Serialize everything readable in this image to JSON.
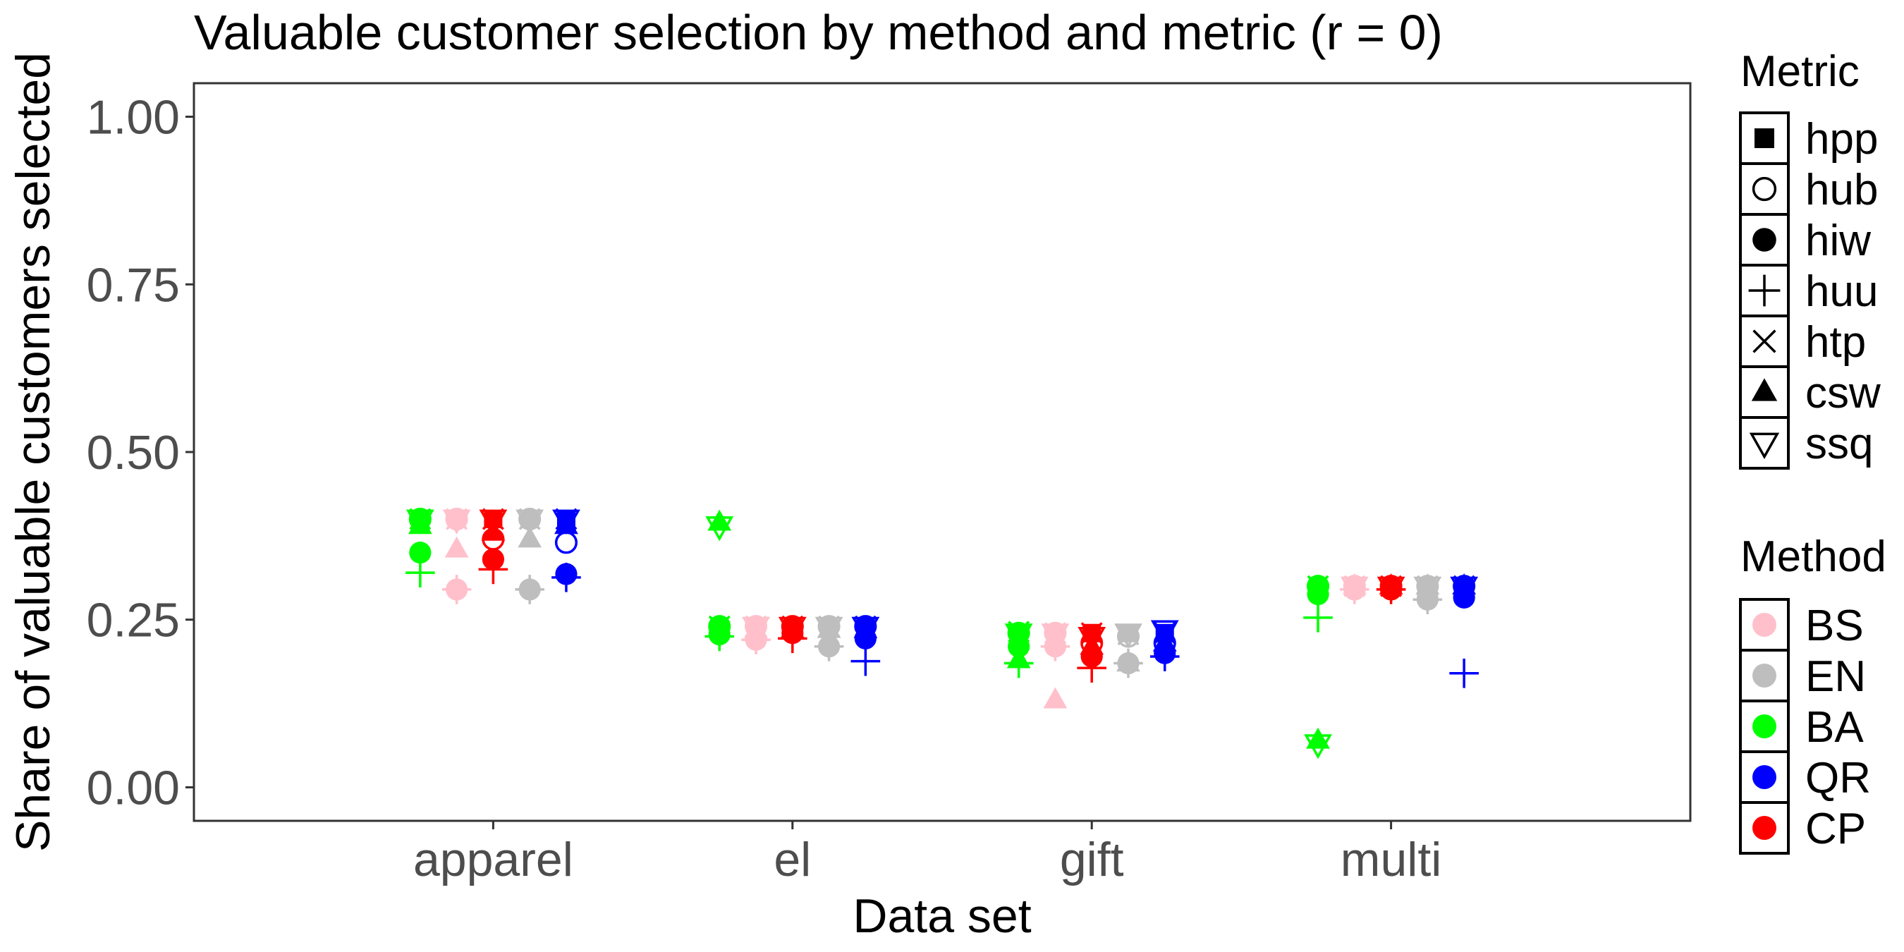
{
  "chart_data": {
    "type": "scatter",
    "title": "Valuable customer selection by method and metric (r = 0)",
    "xlabel": "Data set",
    "ylabel": "Share of valuable customers selected",
    "categories": [
      "apparel",
      "el",
      "gift",
      "multi"
    ],
    "ylim": [
      -0.05,
      1.05
    ],
    "yticks": [
      0,
      0.25,
      0.5,
      0.75,
      1.0
    ],
    "ytick_labels": [
      "0.00",
      "0.25",
      "0.50",
      "0.75",
      "1.00"
    ],
    "grid": false,
    "legend_position": "right",
    "legends": {
      "metric": {
        "title": "Metric",
        "items": [
          {
            "label": "hpp",
            "shape": "square-filled"
          },
          {
            "label": "hub",
            "shape": "circle-open"
          },
          {
            "label": "hiw",
            "shape": "circle-filled"
          },
          {
            "label": "huu",
            "shape": "plus"
          },
          {
            "label": "htp",
            "shape": "cross"
          },
          {
            "label": "csw",
            "shape": "triangle-up-filled"
          },
          {
            "label": "ssq",
            "shape": "triangle-down-open"
          }
        ]
      },
      "method": {
        "title": "Method",
        "items": [
          {
            "label": "BS",
            "color": "#FFC0CB"
          },
          {
            "label": "EN",
            "color": "#BEBEBE"
          },
          {
            "label": "BA",
            "color": "#00FF00"
          },
          {
            "label": "QR",
            "color": "#0000FF"
          },
          {
            "label": "CP",
            "color": "#FF0000"
          }
        ]
      }
    },
    "series": [
      {
        "category": "apparel",
        "method": "BA",
        "values": {
          "hpp": 0.4,
          "hub": 0.4,
          "hiw": 0.35,
          "huu": 0.32,
          "htp": 0.4,
          "csw": 0.39,
          "ssq": 0.4
        }
      },
      {
        "category": "apparel",
        "method": "BS",
        "values": {
          "hpp": 0.4,
          "hub": 0.4,
          "hiw": 0.295,
          "huu": 0.295,
          "htp": 0.4,
          "csw": 0.355,
          "ssq": 0.4
        }
      },
      {
        "category": "apparel",
        "method": "CP",
        "values": {
          "hpp": 0.4,
          "hub": 0.37,
          "hiw": 0.34,
          "huu": 0.325,
          "htp": 0.4,
          "csw": 0.38,
          "ssq": 0.4
        }
      },
      {
        "category": "apparel",
        "method": "EN",
        "values": {
          "hpp": 0.4,
          "hub": 0.4,
          "hiw": 0.295,
          "huu": 0.295,
          "htp": 0.4,
          "csw": 0.37,
          "ssq": 0.4
        }
      },
      {
        "category": "apparel",
        "method": "QR",
        "values": {
          "hpp": 0.4,
          "hub": 0.365,
          "hiw": 0.318,
          "huu": 0.313,
          "htp": 0.4,
          "csw": 0.39,
          "ssq": 0.4
        }
      },
      {
        "category": "el",
        "method": "BA",
        "values": {
          "hpp": 0.24,
          "hub": 0.24,
          "hiw": 0.228,
          "huu": 0.225,
          "htp": 0.24,
          "csw": 0.395,
          "ssq": 0.39
        }
      },
      {
        "category": "el",
        "method": "BS",
        "values": {
          "hpp": 0.24,
          "hub": 0.24,
          "hiw": 0.22,
          "huu": 0.22,
          "htp": 0.24,
          "csw": 0.235,
          "ssq": 0.24
        }
      },
      {
        "category": "el",
        "method": "CP",
        "values": {
          "hpp": 0.24,
          "hub": 0.24,
          "hiw": 0.23,
          "huu": 0.222,
          "htp": 0.24,
          "csw": 0.235,
          "ssq": 0.24
        }
      },
      {
        "category": "el",
        "method": "EN",
        "values": {
          "hpp": 0.24,
          "hub": 0.24,
          "hiw": 0.21,
          "huu": 0.21,
          "htp": 0.24,
          "csw": 0.235,
          "ssq": 0.24
        }
      },
      {
        "category": "el",
        "method": "QR",
        "values": {
          "hpp": 0.24,
          "hub": 0.24,
          "hiw": 0.222,
          "huu": 0.188,
          "htp": 0.24,
          "csw": 0.235,
          "ssq": 0.24
        }
      },
      {
        "category": "gift",
        "method": "BA",
        "values": {
          "hpp": 0.23,
          "hub": 0.23,
          "hiw": 0.21,
          "huu": 0.185,
          "htp": 0.232,
          "csw": 0.19,
          "ssq": 0.23
        }
      },
      {
        "category": "gift",
        "method": "BS",
        "values": {
          "hpp": 0.23,
          "hub": 0.23,
          "hiw": 0.21,
          "huu": 0.21,
          "htp": 0.23,
          "csw": 0.13,
          "ssq": 0.23
        }
      },
      {
        "category": "gift",
        "method": "CP",
        "values": {
          "hpp": 0.23,
          "hub": 0.215,
          "hiw": 0.195,
          "huu": 0.178,
          "htp": 0.23,
          "csw": 0.21,
          "ssq": 0.225
        }
      },
      {
        "category": "gift",
        "method": "EN",
        "values": {
          "hpp": 0.23,
          "hub": 0.225,
          "hiw": 0.185,
          "huu": 0.185,
          "htp": 0.228,
          "csw": 0.185,
          "ssq": 0.23
        }
      },
      {
        "category": "gift",
        "method": "QR",
        "values": {
          "hpp": 0.23,
          "hub": 0.215,
          "hiw": 0.2,
          "huu": 0.195,
          "htp": 0.23,
          "csw": 0.215,
          "ssq": 0.235
        }
      },
      {
        "category": "multi",
        "method": "BA",
        "values": {
          "hpp": 0.3,
          "hub": 0.3,
          "hiw": 0.288,
          "huu": 0.253,
          "htp": 0.3,
          "csw": 0.07,
          "ssq": 0.065
        }
      },
      {
        "category": "multi",
        "method": "BS",
        "values": {
          "hpp": 0.3,
          "hub": 0.3,
          "hiw": 0.295,
          "huu": 0.295,
          "htp": 0.3,
          "csw": 0.3,
          "ssq": 0.3
        }
      },
      {
        "category": "multi",
        "method": "CP",
        "values": {
          "hpp": 0.3,
          "hub": 0.3,
          "hiw": 0.295,
          "huu": 0.295,
          "htp": 0.3,
          "csw": 0.3,
          "ssq": 0.3
        }
      },
      {
        "category": "multi",
        "method": "EN",
        "values": {
          "hpp": 0.3,
          "hub": 0.3,
          "hiw": 0.28,
          "huu": 0.28,
          "htp": 0.3,
          "csw": 0.3,
          "ssq": 0.3
        }
      },
      {
        "category": "multi",
        "method": "QR",
        "values": {
          "hpp": 0.3,
          "hub": 0.3,
          "hiw": 0.283,
          "huu": 0.17,
          "htp": 0.3,
          "csw": 0.3,
          "ssq": 0.3
        }
      }
    ]
  }
}
